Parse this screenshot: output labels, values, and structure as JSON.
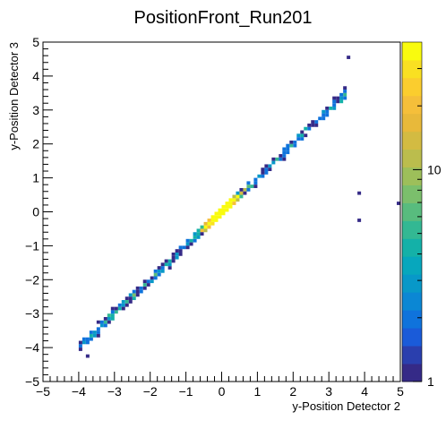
{
  "chart_data": {
    "type": "heatmap",
    "title": "PositionFront_Run201",
    "xlabel": "y-Position Detector 2",
    "ylabel": "y-Position Detector 3",
    "xlim": [
      -5,
      5
    ],
    "ylim": [
      -5,
      5
    ],
    "x_ticks": [
      "−5",
      "−4",
      "−3",
      "−2",
      "−1",
      "0",
      "1",
      "2",
      "3",
      "4",
      "5"
    ],
    "y_ticks": [
      "−5",
      "−4",
      "−3",
      "−2",
      "−1",
      "0",
      "1",
      "2",
      "3",
      "4",
      "5"
    ],
    "z_scale": "log",
    "zlim": [
      1,
      40
    ],
    "z_ticks": [
      "1",
      "10"
    ],
    "palette": [
      "#352a87",
      "#2a3fae",
      "#1a5bd9",
      "#0f73dc",
      "#0b87d4",
      "#0898c8",
      "#07a7bd",
      "#14b1a8",
      "#33b893",
      "#58bc7e",
      "#7bbf6c",
      "#9dbf5a",
      "#bbbd4d",
      "#d3bb42",
      "#e8b93a",
      "#f5bf3a",
      "#fbcd2e",
      "#f9e022",
      "#f9fb0e"
    ],
    "correlation": {
      "relation": "y ≈ x",
      "dense_core_x": [
        -1.0,
        1.0
      ],
      "sparse_tail_x": [
        -4.0,
        3.5
      ],
      "outliers": [
        [
          3.85,
          0.6
        ],
        [
          3.85,
          -0.3
        ],
        [
          4.95,
          0.2
        ],
        [
          3.6,
          4.5
        ],
        [
          -3.5,
          -3.6
        ],
        [
          -3.7,
          -4.3
        ]
      ]
    }
  }
}
